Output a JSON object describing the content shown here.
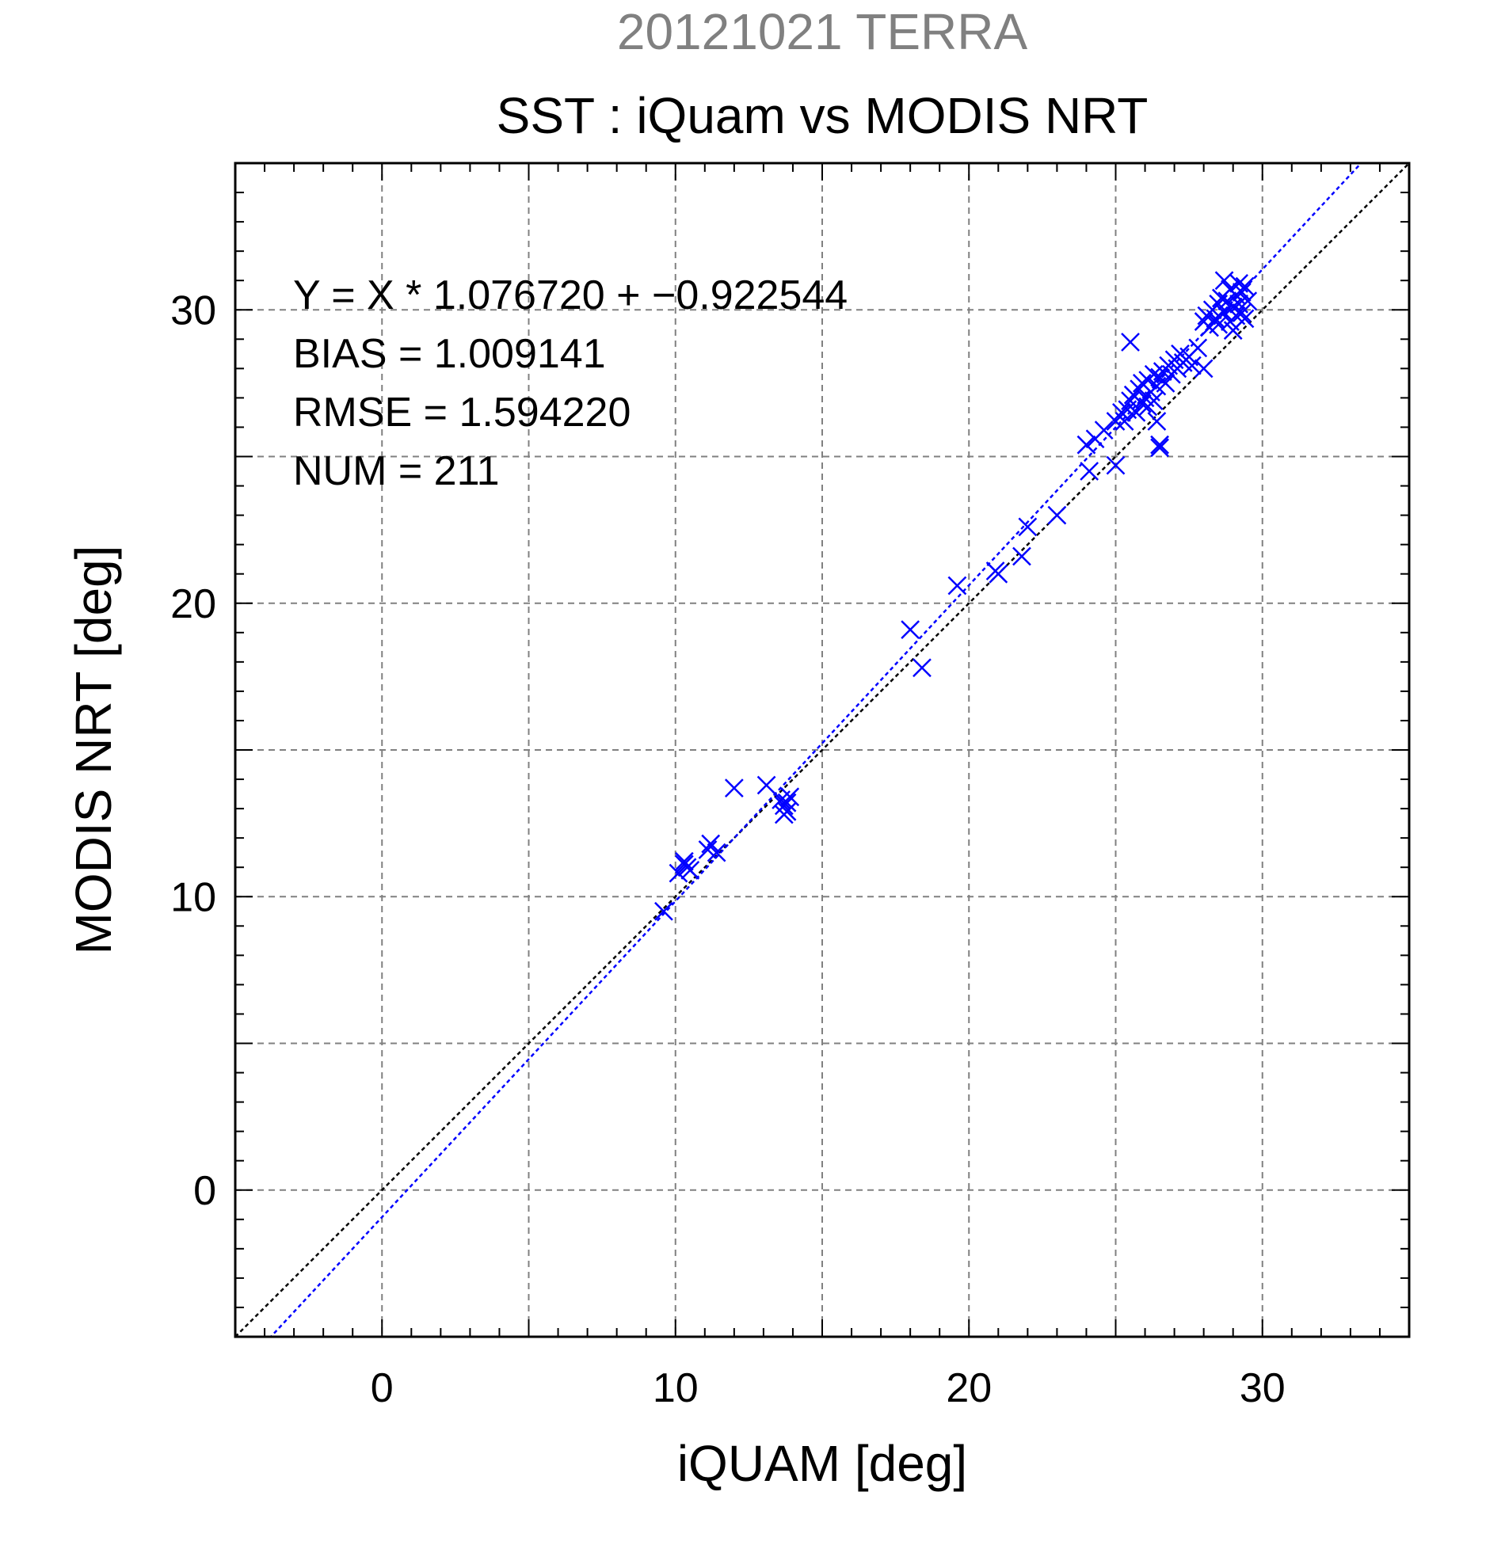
{
  "chart_data": {
    "type": "scatter",
    "supertitle": "20121021 TERRA",
    "title": "SST : iQuam vs MODIS NRT",
    "xlabel": "iQUAM [deg]",
    "ylabel": "MODIS NRT [deg]",
    "xlim": [
      -5,
      35
    ],
    "ylim": [
      -5,
      35
    ],
    "xticks": [
      0,
      10,
      20,
      30
    ],
    "yticks": [
      0,
      10,
      20,
      30
    ],
    "grid": true,
    "stats": {
      "equation": "Y = X * 1.076720 + −0.922544",
      "bias": "BIAS = 1.009141",
      "rmse": "RMSE = 1.594220",
      "num": "NUM = 211"
    },
    "fit": {
      "slope": 1.07672,
      "intercept": -0.922544
    },
    "colors": {
      "points": "#0000ff",
      "fit_line": "#0000ff",
      "identity_line": "#000000",
      "grid": "#808080",
      "supertitle": "#808080"
    },
    "points": [
      [
        9.6,
        9.5
      ],
      [
        10.1,
        10.8
      ],
      [
        10.3,
        11.2
      ],
      [
        10.4,
        11.0
      ],
      [
        10.5,
        10.9
      ],
      [
        10.3,
        11.1
      ],
      [
        11.1,
        11.6
      ],
      [
        11.2,
        11.8
      ],
      [
        11.4,
        11.5
      ],
      [
        12.0,
        13.7
      ],
      [
        13.1,
        13.8
      ],
      [
        13.6,
        13.3
      ],
      [
        13.7,
        13.1
      ],
      [
        13.8,
        12.9
      ],
      [
        13.9,
        13.4
      ],
      [
        13.7,
        12.8
      ],
      [
        13.8,
        13.2
      ],
      [
        18.0,
        19.1
      ],
      [
        18.4,
        17.8
      ],
      [
        19.6,
        20.6
      ],
      [
        20.9,
        21.1
      ],
      [
        21.0,
        21.0
      ],
      [
        21.8,
        21.6
      ],
      [
        22.0,
        22.6
      ],
      [
        23.0,
        23.0
      ],
      [
        24.0,
        25.4
      ],
      [
        24.1,
        24.5
      ],
      [
        24.3,
        25.6
      ],
      [
        24.6,
        25.9
      ],
      [
        25.0,
        24.7
      ],
      [
        25.0,
        26.2
      ],
      [
        25.2,
        26.5
      ],
      [
        25.3,
        26.2
      ],
      [
        25.4,
        26.6
      ],
      [
        25.5,
        26.9
      ],
      [
        25.5,
        28.9
      ],
      [
        25.6,
        27.1
      ],
      [
        25.7,
        26.5
      ],
      [
        25.8,
        27.3
      ],
      [
        25.9,
        26.8
      ],
      [
        25.9,
        27.5
      ],
      [
        26.0,
        27.0
      ],
      [
        26.1,
        26.7
      ],
      [
        26.1,
        27.6
      ],
      [
        26.2,
        27.2
      ],
      [
        26.3,
        26.9
      ],
      [
        26.3,
        27.8
      ],
      [
        26.4,
        27.4
      ],
      [
        26.4,
        26.2
      ],
      [
        26.5,
        25.4
      ],
      [
        26.5,
        25.3
      ],
      [
        26.5,
        27.7
      ],
      [
        26.6,
        27.9
      ],
      [
        26.7,
        27.5
      ],
      [
        26.8,
        28.1
      ],
      [
        26.9,
        27.8
      ],
      [
        27.0,
        28.3
      ],
      [
        27.1,
        28.0
      ],
      [
        27.2,
        28.5
      ],
      [
        27.3,
        28.2
      ],
      [
        27.5,
        28.4
      ],
      [
        27.6,
        28.1
      ],
      [
        27.8,
        28.7
      ],
      [
        28.0,
        28.0
      ],
      [
        28.0,
        29.6
      ],
      [
        28.1,
        29.8
      ],
      [
        28.2,
        29.4
      ],
      [
        28.3,
        30.0
      ],
      [
        28.4,
        29.7
      ],
      [
        28.5,
        30.2
      ],
      [
        28.5,
        29.5
      ],
      [
        28.6,
        30.4
      ],
      [
        28.7,
        29.9
      ],
      [
        28.8,
        30.3
      ],
      [
        28.9,
        29.6
      ],
      [
        28.9,
        30.7
      ],
      [
        29.0,
        30.1
      ],
      [
        29.0,
        29.3
      ],
      [
        29.1,
        30.5
      ],
      [
        29.1,
        29.8
      ],
      [
        29.2,
        30.9
      ],
      [
        29.2,
        30.2
      ],
      [
        29.3,
        29.9
      ],
      [
        29.3,
        30.6
      ],
      [
        29.4,
        30.8
      ],
      [
        29.4,
        29.7
      ],
      [
        29.5,
        30.3
      ],
      [
        28.7,
        31.0
      ]
    ]
  }
}
